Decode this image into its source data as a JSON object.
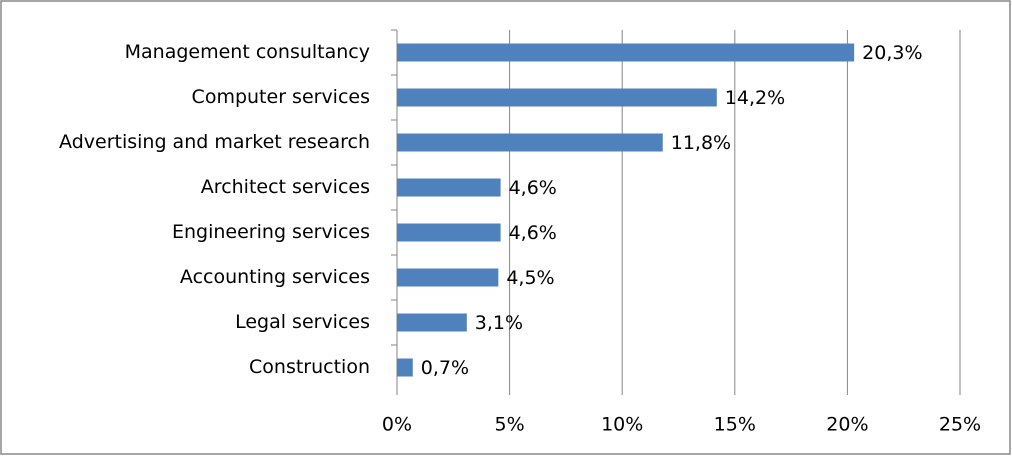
{
  "chart_data": {
    "type": "bar",
    "orientation": "horizontal",
    "categories": [
      "Management consultancy",
      "Computer services",
      "Advertising and market research",
      "Architect services",
      "Engineering services",
      "Accounting services",
      "Legal services",
      "Construction"
    ],
    "values": [
      20.3,
      14.2,
      11.8,
      4.6,
      4.6,
      4.5,
      3.1,
      0.7
    ],
    "value_labels": [
      "20,3%",
      "14,2%",
      "11,8%",
      "4,6%",
      "4,6%",
      "4,5%",
      "3,1%",
      "0,7%"
    ],
    "color": "#4f81bd",
    "xlim": [
      0,
      25
    ],
    "xticks": [
      {
        "value": 0,
        "label": "0%"
      },
      {
        "value": 5,
        "label": "5%"
      },
      {
        "value": 10,
        "label": "10%"
      },
      {
        "value": 15,
        "label": "15%"
      },
      {
        "value": 20,
        "label": "20%"
      },
      {
        "value": 25,
        "label": "25%"
      }
    ],
    "grid": true
  }
}
